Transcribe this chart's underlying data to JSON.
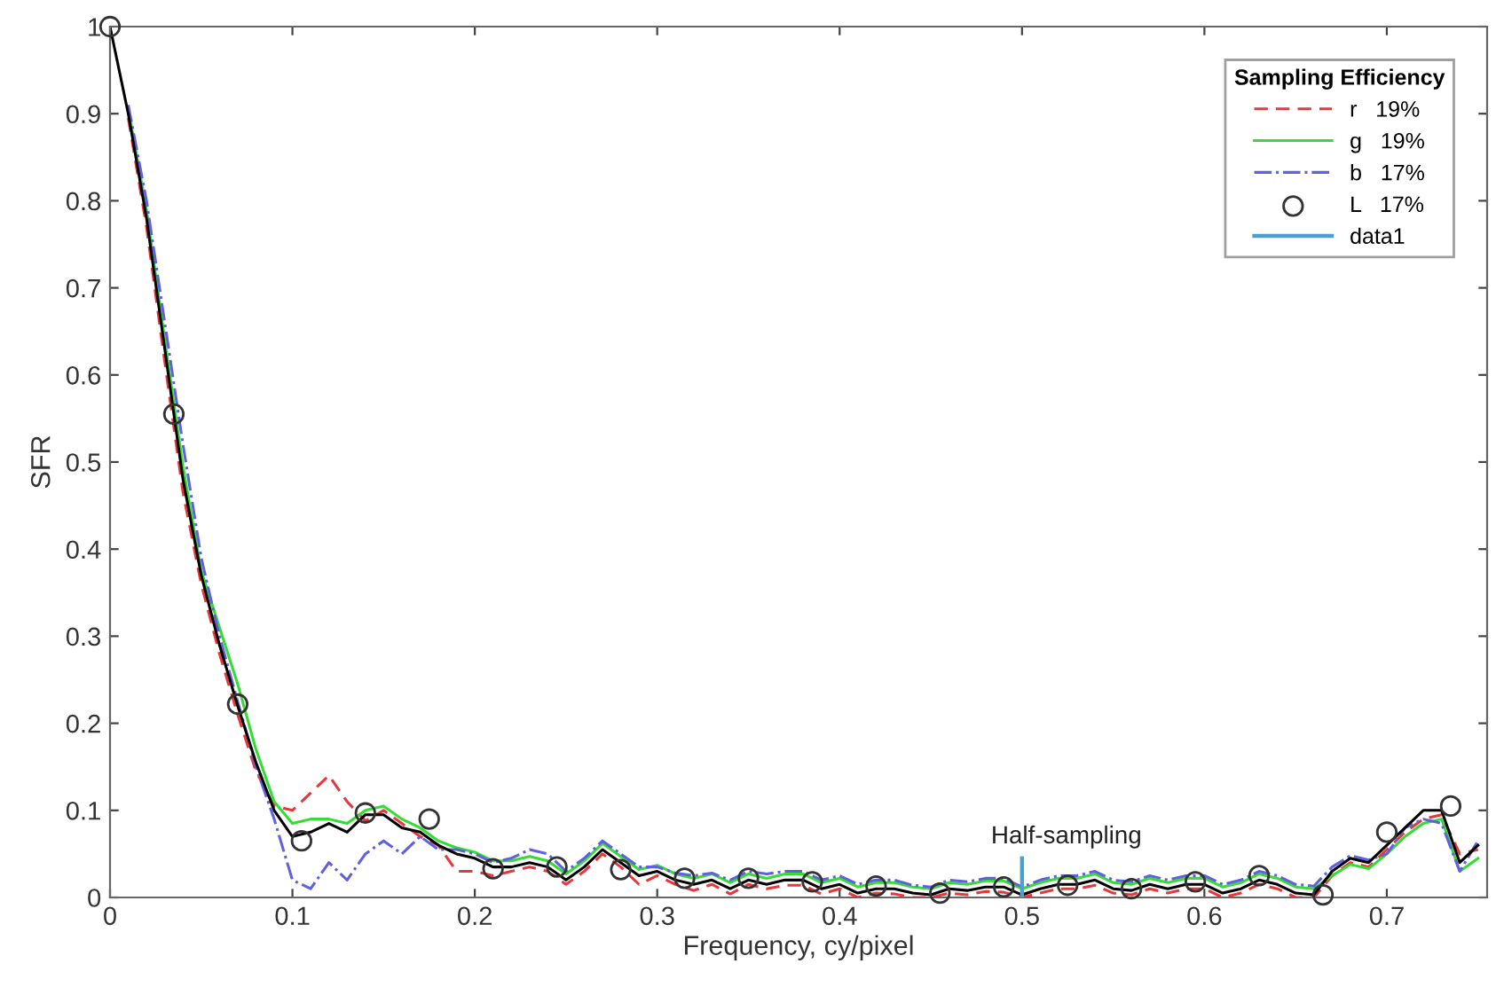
{
  "chart_data": {
    "type": "line",
    "xlabel": "Frequency, cy/pixel",
    "ylabel": "SFR",
    "legend_title": "Sampling Efficiency",
    "legend": "top right",
    "grid": false,
    "x": [
      0,
      0.01,
      0.02,
      0.03,
      0.04,
      0.05,
      0.06,
      0.07,
      0.08,
      0.09,
      0.1,
      0.11,
      0.12,
      0.13,
      0.14,
      0.15,
      0.16,
      0.17,
      0.18,
      0.19,
      0.2,
      0.21,
      0.22,
      0.23,
      0.24,
      0.25,
      0.26,
      0.27,
      0.28,
      0.29,
      0.3,
      0.31,
      0.32,
      0.33,
      0.34,
      0.35,
      0.36,
      0.37,
      0.38,
      0.39,
      0.4,
      0.41,
      0.42,
      0.43,
      0.44,
      0.45,
      0.46,
      0.47,
      0.48,
      0.49,
      0.5,
      0.51,
      0.52,
      0.53,
      0.54,
      0.55,
      0.56,
      0.57,
      0.58,
      0.59,
      0.6,
      0.61,
      0.62,
      0.63,
      0.64,
      0.65,
      0.66,
      0.67,
      0.68,
      0.69,
      0.7,
      0.71,
      0.72,
      0.73,
      0.74,
      0.75
    ],
    "series": [
      {
        "name": "r   19%",
        "color": "#e8383d",
        "line_style": "dashed",
        "values": [
          null,
          0.895,
          0.77,
          0.615,
          0.465,
          0.36,
          0.28,
          0.21,
          0.145,
          0.105,
          0.1,
          0.12,
          0.14,
          0.11,
          0.088,
          0.1,
          0.085,
          0.07,
          0.06,
          0.03,
          0.03,
          0.025,
          0.03,
          0.035,
          0.03,
          0.015,
          0.03,
          0.05,
          0.035,
          0.015,
          0.025,
          0.015,
          0.008,
          0.015,
          0.004,
          0.015,
          0.01,
          0.014,
          0.014,
          0.004,
          0.01,
          0,
          0.005,
          0.004,
          0,
          0,
          0.005,
          0.003,
          0.007,
          0.006,
          0,
          0.005,
          0.01,
          0.01,
          0.014,
          0.005,
          0.003,
          0.01,
          0.005,
          0.01,
          0.01,
          0,
          0.005,
          0.015,
          0.01,
          0,
          0,
          0.025,
          0.04,
          0.035,
          0.055,
          0.075,
          0.09,
          0.095,
          0.05,
          0.055
        ]
      },
      {
        "name": "g   19%",
        "color": "#33dd33",
        "line_style": "solid",
        "values": [
          null,
          0.905,
          0.79,
          0.64,
          0.495,
          0.375,
          0.31,
          0.245,
          0.17,
          0.11,
          0.085,
          0.09,
          0.09,
          0.085,
          0.1,
          0.105,
          0.09,
          0.08,
          0.065,
          0.057,
          0.052,
          0.042,
          0.042,
          0.047,
          0.042,
          0.027,
          0.042,
          0.062,
          0.047,
          0.032,
          0.037,
          0.027,
          0.022,
          0.027,
          0.017,
          0.027,
          0.022,
          0.027,
          0.027,
          0.017,
          0.022,
          0.012,
          0.017,
          0.017,
          0.012,
          0.01,
          0.017,
          0.015,
          0.019,
          0.019,
          0.01,
          0.017,
          0.022,
          0.022,
          0.027,
          0.017,
          0.015,
          0.022,
          0.017,
          0.022,
          0.022,
          0.012,
          0.017,
          0.027,
          0.022,
          0.012,
          0.01,
          0.025,
          0.038,
          0.033,
          0.05,
          0.07,
          0.085,
          0.09,
          0.03,
          0.045
        ]
      },
      {
        "name": "b   17%",
        "color": "#6060e0",
        "line_style": "dashdot",
        "values": [
          null,
          0.91,
          0.8,
          0.66,
          0.52,
          0.39,
          0.3,
          0.225,
          0.15,
          0.09,
          0.02,
          0.01,
          0.04,
          0.02,
          0.05,
          0.065,
          0.05,
          0.07,
          0.055,
          0.055,
          0.05,
          0.04,
          0.045,
          0.055,
          0.05,
          0.03,
          0.045,
          0.065,
          0.05,
          0.035,
          0.035,
          0.028,
          0.025,
          0.028,
          0.02,
          0.03,
          0.027,
          0.03,
          0.03,
          0.02,
          0.025,
          0.015,
          0.02,
          0.02,
          0.014,
          0.012,
          0.02,
          0.018,
          0.022,
          0.022,
          0.012,
          0.02,
          0.025,
          0.025,
          0.03,
          0.02,
          0.018,
          0.025,
          0.02,
          0.025,
          0.025,
          0.015,
          0.02,
          0.03,
          0.025,
          0.015,
          0.013,
          0.035,
          0.048,
          0.043,
          0.05,
          0.08,
          0.09,
          0.085,
          0.03,
          0.065
        ]
      },
      {
        "color": "#000000",
        "line_style": "solid",
        "values": [
          1,
          0.9,
          0.78,
          0.63,
          0.48,
          0.37,
          0.29,
          0.22,
          0.155,
          0.1,
          0.07,
          0.075,
          0.085,
          0.075,
          0.095,
          0.095,
          0.08,
          0.075,
          0.06,
          0.05,
          0.045,
          0.035,
          0.035,
          0.04,
          0.035,
          0.02,
          0.035,
          0.055,
          0.04,
          0.025,
          0.03,
          0.02,
          0.015,
          0.02,
          0.01,
          0.02,
          0.015,
          0.02,
          0.02,
          0.01,
          0.015,
          0.005,
          0.01,
          0.01,
          0.005,
          0.003,
          0.01,
          0.008,
          0.012,
          0.012,
          0.003,
          0.01,
          0.015,
          0.015,
          0.02,
          0.01,
          0.008,
          0.015,
          0.01,
          0.015,
          0.015,
          0.005,
          0.01,
          0.02,
          0.015,
          0.005,
          0.003,
          0.03,
          0.045,
          0.04,
          0.06,
          0.08,
          0.1,
          0.1,
          0.04,
          0.06
        ]
      },
      {
        "name": "L   17%",
        "type": "scatter",
        "marker": "circle",
        "color": "#333333",
        "x": [
          0,
          0.035,
          0.07,
          0.105,
          0.14,
          0.175,
          0.21,
          0.245,
          0.28,
          0.315,
          0.35,
          0.385,
          0.42,
          0.455,
          0.49,
          0.525,
          0.56,
          0.595,
          0.63,
          0.665,
          0.7,
          0.735
        ],
        "values": [
          1,
          0.555,
          0.222,
          0.065,
          0.097,
          0.09,
          0.033,
          0.035,
          0.032,
          0.022,
          0.022,
          0.018,
          0.013,
          0.005,
          0.012,
          0.014,
          0.01,
          0.018,
          0.025,
          0.003,
          0.075,
          0.105
        ]
      },
      {
        "name": "data1",
        "color": "#4aa0d0",
        "line_style": "solid",
        "x": [
          0.5,
          0.5
        ],
        "values": [
          0,
          0.045
        ]
      }
    ],
    "annotations": [
      {
        "text": "Half-sampling",
        "x": 0.5,
        "y": 0.045
      }
    ],
    "xlim": [
      0,
      0.755
    ],
    "xticks": [
      0,
      0.1,
      0.2,
      0.3,
      0.4,
      0.5,
      0.6,
      0.7
    ],
    "ylim": [
      0,
      1
    ],
    "yticks": [
      0,
      0.1,
      0.2,
      0.3,
      0.4,
      0.5,
      0.6,
      0.7,
      0.8,
      0.9,
      1
    ]
  }
}
